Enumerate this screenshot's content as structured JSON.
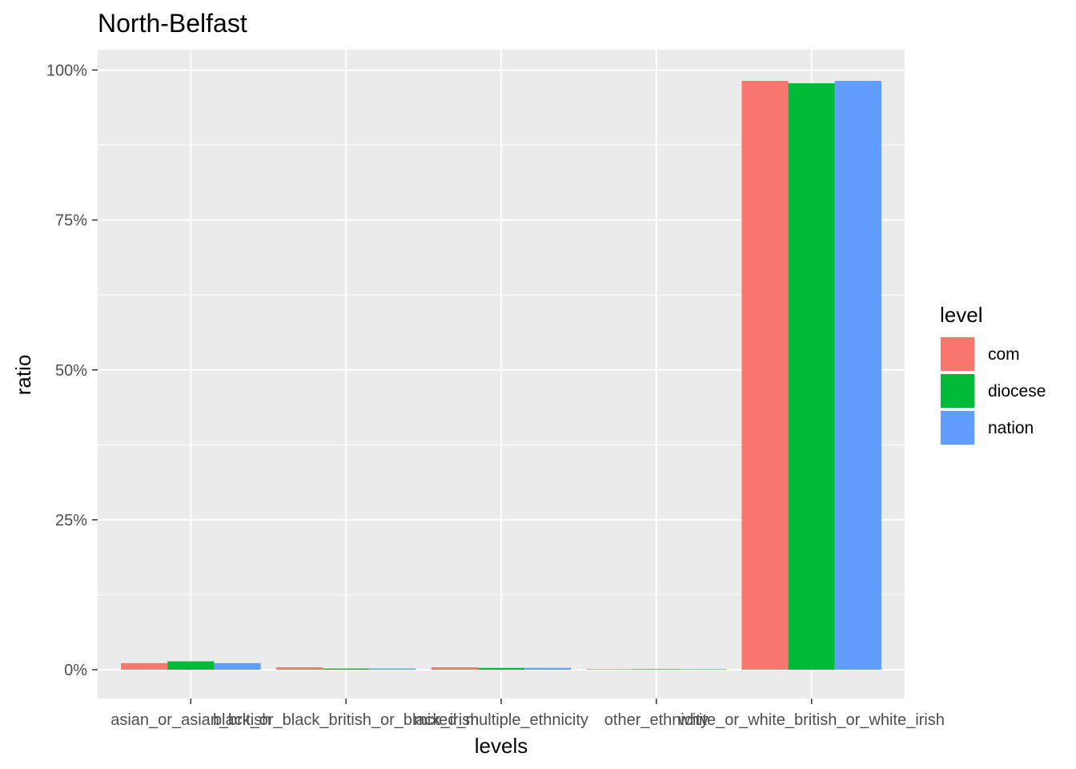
{
  "chart_data": {
    "type": "bar",
    "title": "North-Belfast",
    "xlabel": "levels",
    "ylabel": "ratio",
    "categories": [
      "asian_or_asian_british",
      "black_or_black_british_or_black_irish",
      "mixed_multiple_ethnicity",
      "other_ethnicity",
      "white_or_white_british_or_white_irish"
    ],
    "series": [
      {
        "name": "com",
        "color": "#F8766D",
        "values": [
          0.011,
          0.004,
          0.004,
          0.001,
          0.982
        ]
      },
      {
        "name": "diocese",
        "color": "#00BA38",
        "values": [
          0.014,
          0.002,
          0.003,
          0.001,
          0.978
        ]
      },
      {
        "name": "nation",
        "color": "#619CFF",
        "values": [
          0.011,
          0.002,
          0.003,
          0.001,
          0.982
        ]
      }
    ],
    "ylim": [
      -0.048,
      1.034
    ],
    "yticks": [
      0,
      0.25,
      0.5,
      0.75,
      1.0
    ],
    "ytick_labels": [
      "0%",
      "25%",
      "50%",
      "75%",
      "100%"
    ],
    "grid": true,
    "legend": {
      "title": "level",
      "position": "right"
    },
    "panel_color": "#EBEBEB"
  }
}
